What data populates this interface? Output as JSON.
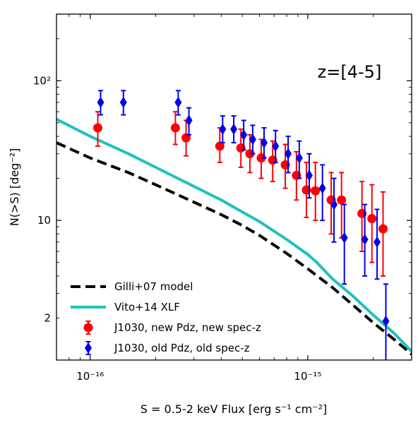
{
  "chart_data": {
    "type": "scatter",
    "xscale": "log",
    "yscale": "log",
    "xlim": [
      7e-17,
      3e-15
    ],
    "ylim": [
      1.0,
      300
    ],
    "xlabel": "S = 0.5-2 keV Flux [erg s⁻¹ cm⁻²]",
    "ylabel": "N(>S) [deg⁻²]",
    "annotation": "z=[4-5]",
    "xticks": [
      {
        "value": 1e-16,
        "label": "10⁻¹⁶"
      },
      {
        "value": 1e-15,
        "label": "10⁻¹⁵"
      }
    ],
    "yticks": [
      {
        "value": 2,
        "label": "2"
      },
      {
        "value": 10,
        "label": "10"
      },
      {
        "value": 100,
        "label": "10²"
      }
    ],
    "grid": false,
    "legend_position": "lower-left",
    "series": [
      {
        "name": "Gilli+07 model",
        "kind": "line",
        "style": "dashed",
        "color": "#000000",
        "x": [
          7e-17,
          1e-16,
          1.5e-16,
          2e-16,
          3e-16,
          4e-16,
          5e-16,
          6e-16,
          8e-16,
          1e-15,
          1.3e-15,
          1.6e-15,
          2e-15,
          2.5e-15,
          3e-15
        ],
        "y": [
          36,
          28,
          22,
          18,
          13.5,
          11.0,
          9.2,
          7.8,
          5.8,
          4.5,
          3.3,
          2.5,
          1.85,
          1.4,
          1.1
        ]
      },
      {
        "name": "Vito+14 XLF",
        "kind": "line",
        "style": "solid",
        "color": "#20c0c0",
        "x": [
          7e-17,
          1e-16,
          1.5e-16,
          2e-16,
          3e-16,
          4e-16,
          5e-16,
          6e-16,
          8e-16,
          1e-15,
          1.1e-15,
          1.3e-15,
          1.6e-15,
          2e-15,
          2.5e-15,
          3e-15
        ],
        "y": [
          53,
          40,
          30,
          24,
          17.5,
          14.0,
          11.5,
          9.8,
          7.3,
          5.7,
          5.0,
          3.8,
          2.9,
          2.1,
          1.55,
          1.15
        ]
      },
      {
        "name": "J1030, new Pdz, new spec-z",
        "kind": "errorbar",
        "marker": "circle",
        "color": "#ff0000",
        "x": [
          1.1e-16,
          2.5e-16,
          2.8e-16,
          4e-16,
          5e-16,
          5.5e-16,
          6.2e-16,
          7e-16,
          8e-16,
          9e-16,
          1e-15,
          1.1e-15,
          1.3e-15,
          1.45e-15,
          1.8e-15,
          2e-15,
          2.25e-15
        ],
        "y": [
          46,
          46,
          39,
          34,
          33,
          30,
          28,
          27,
          25,
          21,
          16.5,
          16.3,
          14,
          14,
          11.2,
          10.3,
          8.7
        ],
        "yerr_low": [
          34,
          35,
          29,
          26,
          24,
          22,
          20,
          19,
          17,
          14,
          10.5,
          10,
          8,
          7.5,
          6,
          5,
          4
        ],
        "yerr_high": [
          60,
          60,
          52,
          46,
          45,
          41,
          38,
          37,
          35,
          31,
          26,
          26,
          22,
          22,
          19,
          18,
          16
        ]
      },
      {
        "name": "J1030, old Pdz, old spec-z",
        "kind": "errorbar",
        "marker": "diamond",
        "color": "#0000ee",
        "x": [
          1.1e-16,
          1.4e-16,
          2.5e-16,
          2.8e-16,
          4e-16,
          4.5e-16,
          5e-16,
          5.5e-16,
          6.2e-16,
          7e-16,
          8e-16,
          9e-16,
          1e-15,
          1.15e-15,
          1.3e-15,
          1.45e-15,
          1.8e-15,
          2.05e-15,
          2.25e-15
        ],
        "y": [
          70,
          70,
          70,
          52,
          45,
          45,
          41,
          38,
          36,
          34,
          30,
          28,
          21,
          17,
          13,
          7.5,
          7.3,
          7,
          1.9
        ],
        "yerr_low": [
          57,
          57,
          57,
          41,
          36,
          36,
          32,
          30,
          28,
          26,
          22,
          20,
          14.5,
          10,
          7,
          3.5,
          4,
          3.8,
          0.8
        ],
        "yerr_high": [
          85,
          85,
          85,
          64,
          56,
          56,
          52,
          48,
          46,
          44,
          40,
          37,
          30,
          25,
          20,
          13,
          13,
          12,
          3.5
        ]
      }
    ]
  }
}
